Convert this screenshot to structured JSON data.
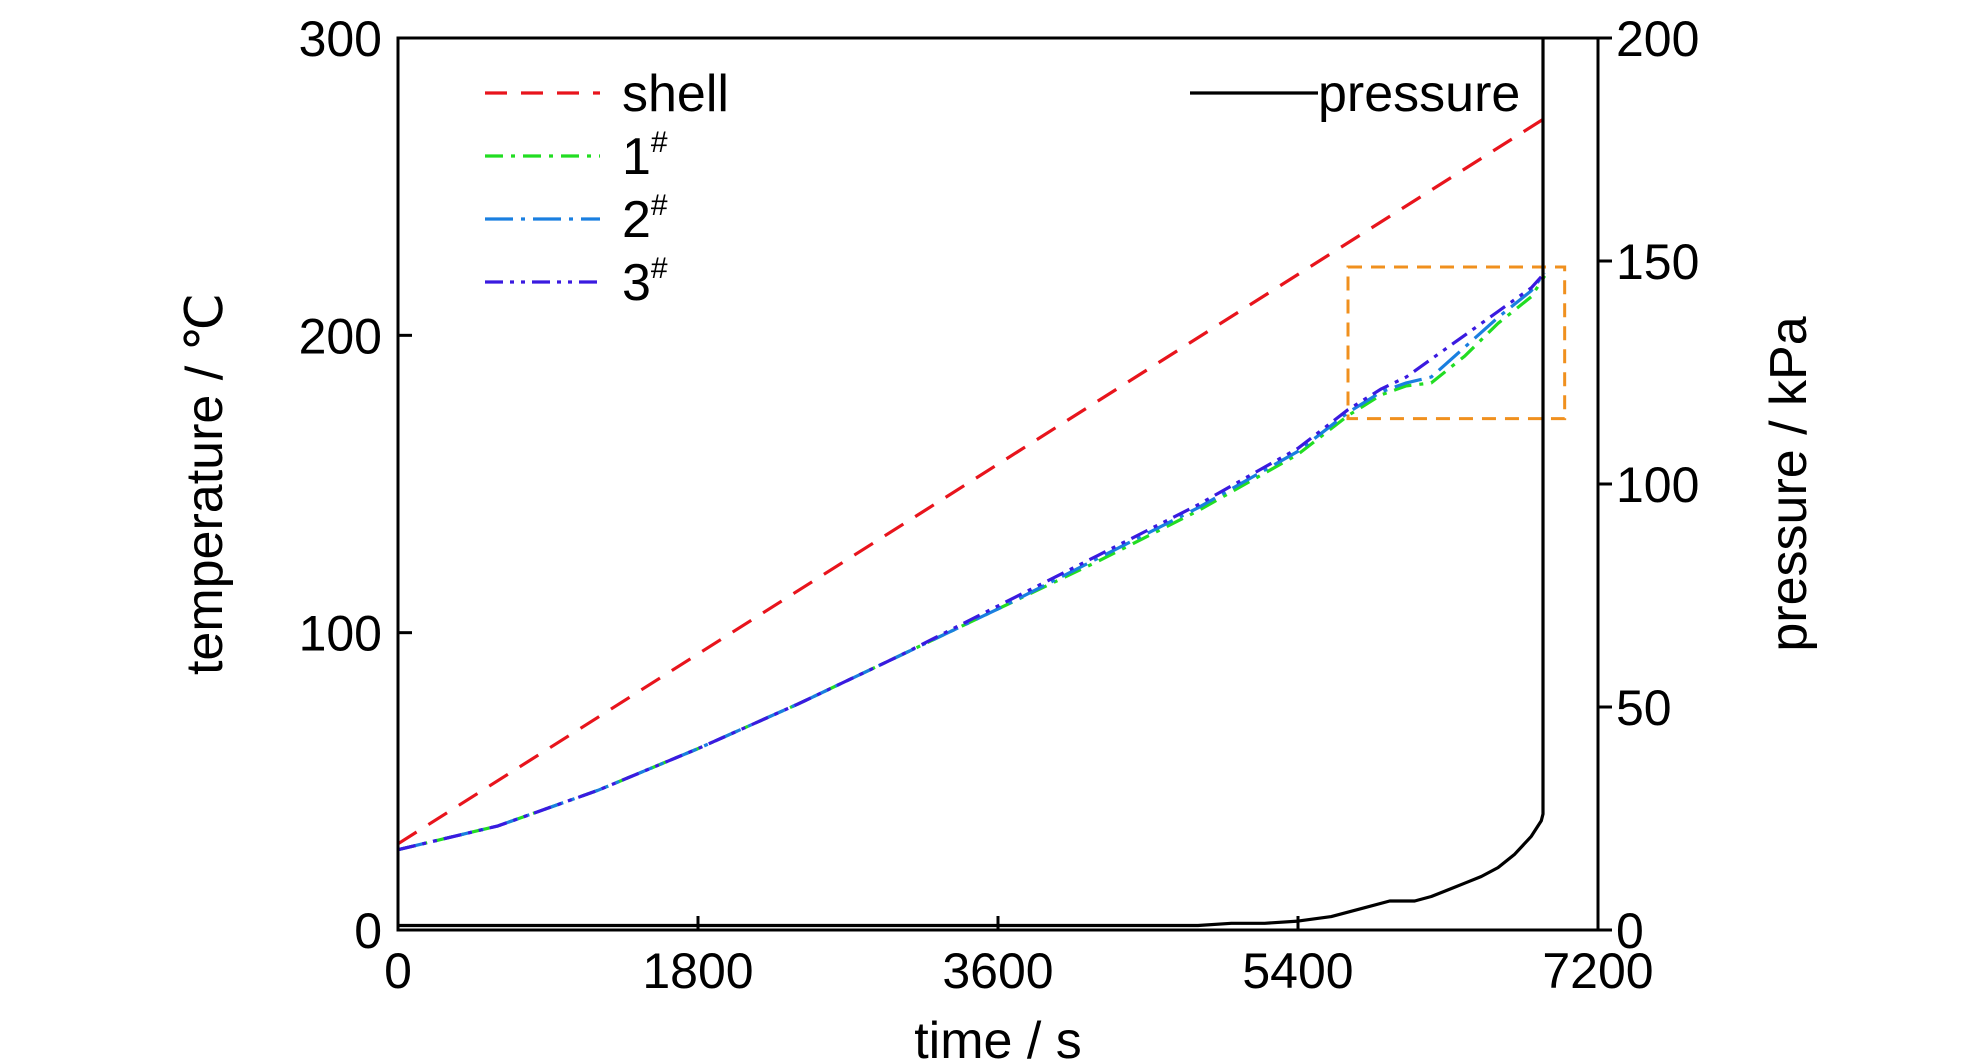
{
  "chart_data": {
    "type": "line",
    "xlabel": "time / s",
    "ylabel_left": "temperature / ℃",
    "ylabel_right": "pressure / kPa",
    "xlim": [
      0,
      7200
    ],
    "ylim_left": [
      0,
      300
    ],
    "ylim_right": [
      0,
      200
    ],
    "x_ticks": [
      0,
      1800,
      3600,
      5400,
      7200
    ],
    "y_left_ticks": [
      0,
      100,
      200,
      300
    ],
    "y_right_ticks": [
      0,
      50,
      100,
      150,
      200
    ],
    "grid": false,
    "legend_left": [
      {
        "label": "shell",
        "sup": "",
        "color": "#e8141c",
        "dash": "dash"
      },
      {
        "label": "1",
        "sup": "#",
        "color": "#22dd22",
        "dash": "dashdot"
      },
      {
        "label": "2",
        "sup": "#",
        "color": "#1a7fe0",
        "dash": "dashdot-long"
      },
      {
        "label": "3",
        "sup": "#",
        "color": "#3a1ae0",
        "dash": "dashdotdot"
      }
    ],
    "legend_right": [
      {
        "label": "pressure",
        "color": "#000000",
        "dash": "solid"
      }
    ],
    "highlight_box": {
      "x": [
        5700,
        7000
      ],
      "y_left": [
        172,
        223
      ],
      "color": "#f0901e"
    },
    "series": [
      {
        "name": "shell",
        "axis": "left",
        "color": "#e8141c",
        "x": [
          0,
          6880
        ],
        "y": [
          29,
          273
        ]
      },
      {
        "name": "1#",
        "axis": "left",
        "color": "#22dd22",
        "x": [
          0,
          600,
          1200,
          1800,
          2400,
          3000,
          3600,
          4200,
          4800,
          5400,
          5700,
          5900,
          6050,
          6200,
          6400,
          6600,
          6800,
          6880
        ],
        "y": [
          27,
          35,
          47,
          61,
          76,
          92,
          108,
          124,
          141,
          160,
          173,
          180,
          183,
          184,
          193,
          204,
          213,
          220
        ]
      },
      {
        "name": "2#",
        "axis": "left",
        "color": "#1a7fe0",
        "x": [
          0,
          600,
          1200,
          1800,
          2400,
          3000,
          3600,
          4200,
          4800,
          5400,
          5700,
          5900,
          6050,
          6200,
          6400,
          6600,
          6800,
          6880
        ],
        "y": [
          27,
          35,
          47,
          61,
          76,
          92,
          108,
          125,
          142,
          161,
          174,
          181,
          184,
          186,
          196,
          206,
          215,
          221
        ]
      },
      {
        "name": "3#",
        "axis": "left",
        "color": "#3a1ae0",
        "x": [
          0,
          600,
          1200,
          1800,
          2400,
          3000,
          3600,
          4200,
          4800,
          5400,
          5700,
          5900,
          6050,
          6200,
          6400,
          6600,
          6800,
          6880
        ],
        "y": [
          27,
          35,
          47,
          61,
          76,
          92,
          109,
          126,
          143,
          162,
          175,
          182,
          186,
          192,
          200,
          208,
          216,
          221
        ]
      },
      {
        "name": "pressure",
        "axis": "right",
        "color": "#000000",
        "x": [
          0,
          1000,
          2000,
          3000,
          4000,
          4800,
          5000,
          5200,
          5400,
          5600,
          5800,
          5950,
          6000,
          6100,
          6200,
          6300,
          6400,
          6500,
          6600,
          6700,
          6800,
          6860,
          6870,
          6870
        ],
        "y": [
          1,
          1,
          1,
          1,
          1,
          1,
          1.5,
          1.5,
          2,
          3,
          5,
          6.5,
          6.5,
          6.5,
          7.5,
          9,
          10.5,
          12,
          14,
          17,
          21,
          24.5,
          26,
          200
        ]
      }
    ]
  }
}
